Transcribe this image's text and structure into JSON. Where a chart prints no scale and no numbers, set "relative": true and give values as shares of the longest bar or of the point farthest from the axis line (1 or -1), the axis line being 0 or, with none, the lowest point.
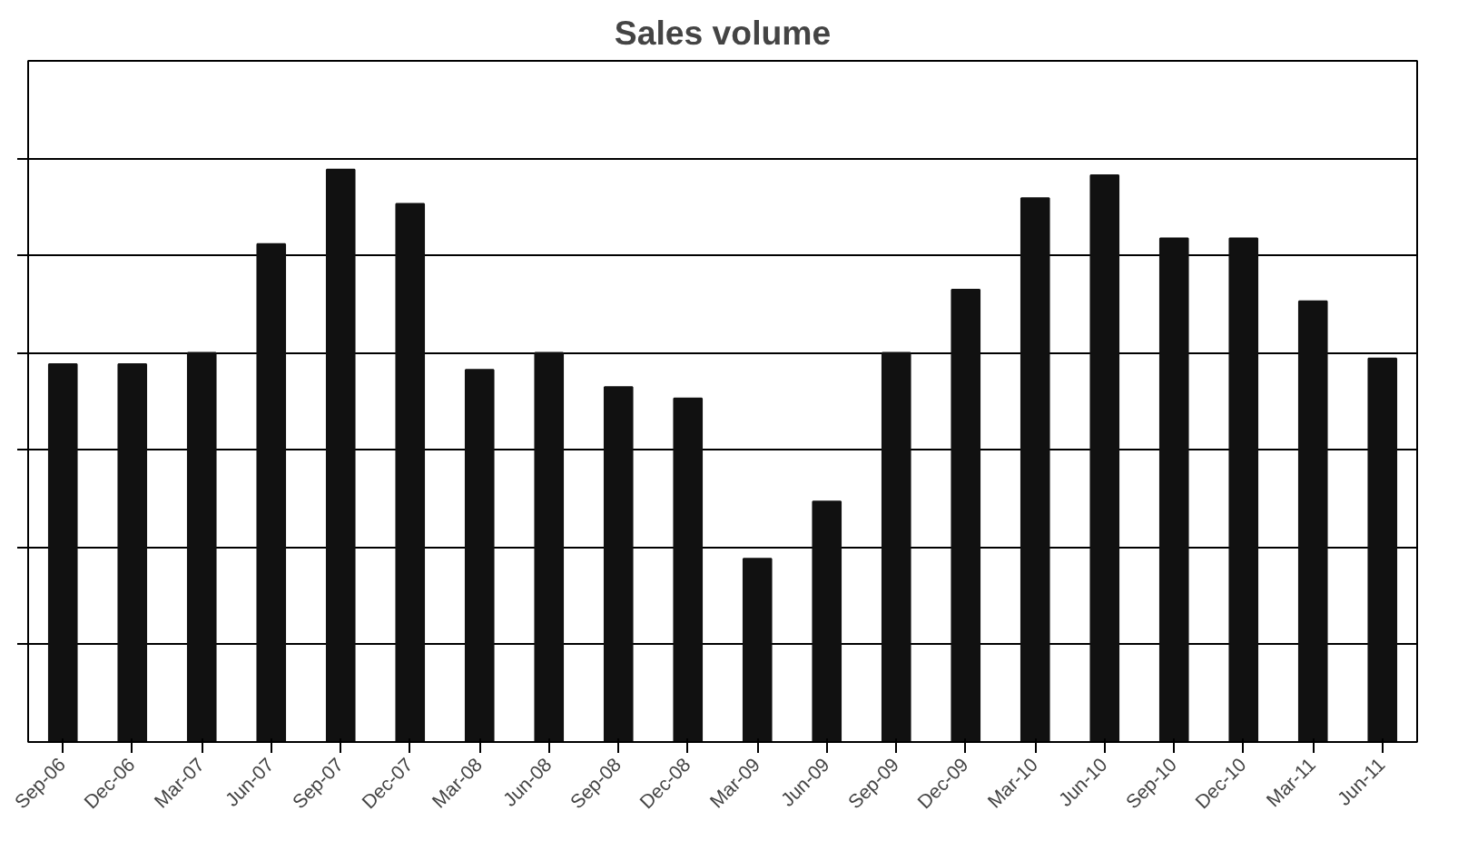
{
  "chart_data": {
    "type": "bar",
    "title": "Sales volume",
    "relative": true,
    "grid": "y",
    "color": "#111111",
    "categories": [
      "Sep-06",
      "Dec-06",
      "Mar-07",
      "Jun-07",
      "Sep-07",
      "Dec-07",
      "Mar-08",
      "Jun-08",
      "Sep-08",
      "Dec-08",
      "Mar-09",
      "Jun-09",
      "Sep-09",
      "Dec-09",
      "Mar-10",
      "Jun-10",
      "Sep-10",
      "Dec-10",
      "Mar-11",
      "Jun-11"
    ],
    "values": [
      0.66,
      0.66,
      0.68,
      0.87,
      1,
      0.94,
      0.65,
      0.68,
      0.62,
      0.6,
      0.32,
      0.42,
      0.68,
      0.79,
      0.95,
      0.99,
      0.88,
      0.88,
      0.77,
      0.67
    ]
  }
}
